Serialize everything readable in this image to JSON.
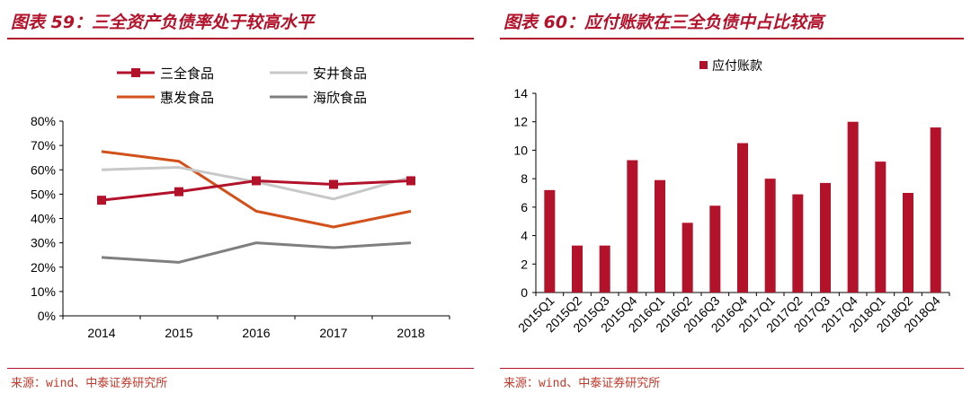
{
  "left_panel": {
    "title": "图表 59：三全资产负债率处于较高水平",
    "source": "来源：wind、中泰证券研究所"
  },
  "right_panel": {
    "title": "图表 60：应付账款在三全负债中占比较高",
    "source": "来源：wind、中泰证券研究所"
  },
  "chart_data": [
    {
      "type": "line",
      "x": [
        "2014",
        "2015",
        "2016",
        "2017",
        "2018"
      ],
      "y_ticks": [
        "0%",
        "10%",
        "20%",
        "30%",
        "40%",
        "50%",
        "60%",
        "70%",
        "80%"
      ],
      "ylim": [
        0,
        80
      ],
      "y_unit": "%",
      "grid": false,
      "legend_position": "top",
      "series": [
        {
          "name": "三全食品",
          "color": "#b3122b",
          "marker": "square",
          "values": [
            47.5,
            51,
            55.5,
            54,
            55.5
          ]
        },
        {
          "name": "安井食品",
          "color": "#c8c8c8",
          "marker": "none",
          "values": [
            60,
            61,
            55,
            48,
            57
          ]
        },
        {
          "name": "惠发食品",
          "color": "#d2501a",
          "marker": "none",
          "values": [
            67.5,
            63.5,
            43,
            36.5,
            43
          ]
        },
        {
          "name": "海欣食品",
          "color": "#7f7f7f",
          "marker": "none",
          "values": [
            24,
            22,
            30,
            28,
            30
          ]
        }
      ]
    },
    {
      "type": "bar",
      "categories": [
        "2015Q1",
        "2015Q2",
        "2015Q3",
        "2015Q4",
        "2016Q1",
        "2016Q2",
        "2016Q3",
        "2016Q4",
        "2017Q1",
        "2017Q2",
        "2017Q3",
        "2017Q4",
        "2018Q1",
        "2018Q2",
        "2018Q4"
      ],
      "series": [
        {
          "name": "应付账款",
          "color": "#b3122b",
          "values": [
            7.2,
            3.3,
            3.3,
            9.3,
            7.9,
            4.9,
            6.1,
            10.5,
            8.0,
            6.9,
            7.7,
            12.0,
            9.2,
            7.0,
            11.6
          ]
        }
      ],
      "y_ticks": [
        "0",
        "2",
        "4",
        "6",
        "8",
        "10",
        "12",
        "14"
      ],
      "ylim": [
        0,
        14
      ],
      "grid": false,
      "legend_position": "top"
    }
  ]
}
